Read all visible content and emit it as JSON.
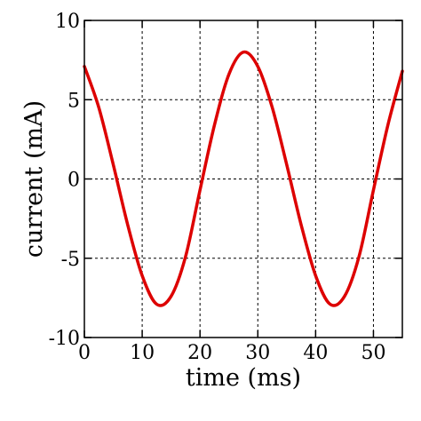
{
  "chart_data": {
    "type": "line",
    "title": "",
    "xlabel": "time (ms)",
    "ylabel": "current (mA)",
    "xlim": [
      0,
      55
    ],
    "ylim": [
      -10,
      10
    ],
    "x_ticks": [
      0,
      10,
      20,
      30,
      40,
      50
    ],
    "y_ticks": [
      -10,
      -5,
      0,
      5,
      10
    ],
    "x_tick_labels": [
      "0",
      "10",
      "20",
      "30",
      "40",
      "50"
    ],
    "y_tick_labels": [
      "-10",
      "-5",
      "0",
      "5",
      "10"
    ],
    "grid": true,
    "legend": "none",
    "series": [
      {
        "color": "#dd0000",
        "x": [
          0,
          2.5,
          5,
          7.5,
          10,
          12.5,
          15,
          17.5,
          20,
          22.5,
          25,
          27.5,
          30,
          32.5,
          35,
          37.5,
          40,
          42.5,
          45,
          47.5,
          50,
          52.5,
          55
        ],
        "y": [
          7.1,
          4.5,
          0.9,
          -2.9,
          -6.1,
          -7.9,
          -7.4,
          -4.9,
          -0.7,
          3.4,
          6.6,
          8.0,
          7.1,
          4.5,
          0.9,
          -2.9,
          -6.1,
          -7.9,
          -7.4,
          -4.9,
          -0.7,
          3.4,
          6.8
        ]
      }
    ]
  }
}
